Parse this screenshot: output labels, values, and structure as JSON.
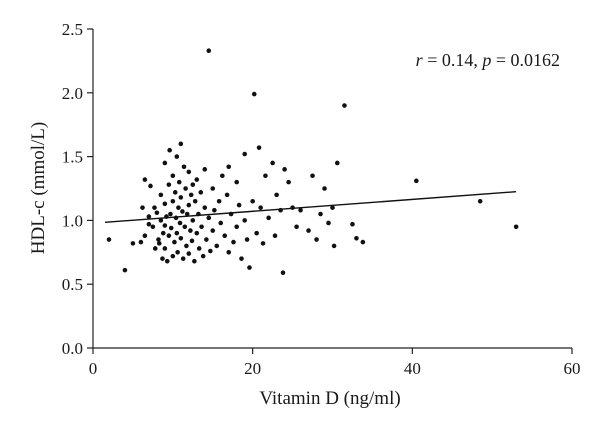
{
  "chart_data": {
    "type": "scatter",
    "title": "",
    "xlabel": "Vitamin D (ng/ml)",
    "ylabel": "HDL-c (mmol/L)",
    "xlim": [
      0,
      60
    ],
    "ylim": [
      0.0,
      2.5
    ],
    "x_ticks": [
      "0",
      "20",
      "40",
      "60"
    ],
    "y_ticks": [
      "0.0",
      "0.5",
      "1.0",
      "1.5",
      "2.0",
      "2.5"
    ],
    "grid": false,
    "annotation": {
      "r_symbol": "r",
      "r_value": " = 0.14, ",
      "p_symbol": "p",
      "p_value": " = 0.0162"
    },
    "trendline": {
      "x": [
        1.5,
        53
      ],
      "y": [
        0.985,
        1.225
      ]
    },
    "series": [
      {
        "points": [
          [
            2,
            0.85
          ],
          [
            4,
            0.61
          ],
          [
            5,
            0.82
          ],
          [
            6,
            0.83
          ],
          [
            6.5,
            1.32
          ],
          [
            6.2,
            1.1
          ],
          [
            6.5,
            0.88
          ],
          [
            7,
            1.03
          ],
          [
            7,
            0.97
          ],
          [
            7.2,
            1.27
          ],
          [
            7.5,
            0.95
          ],
          [
            7.7,
            1.1
          ],
          [
            7.8,
            0.78
          ],
          [
            8,
            1.06
          ],
          [
            8.2,
            0.85
          ],
          [
            8.3,
            0.82
          ],
          [
            8.5,
            1.2
          ],
          [
            8.5,
            1.0
          ],
          [
            8.7,
            0.7
          ],
          [
            8.8,
            0.9
          ],
          [
            9,
            1.45
          ],
          [
            9,
            1.13
          ],
          [
            9,
            0.96
          ],
          [
            9,
            0.78
          ],
          [
            9.2,
            1.03
          ],
          [
            9.3,
            0.68
          ],
          [
            9.5,
            1.28
          ],
          [
            9.5,
            0.88
          ],
          [
            9.6,
            1.55
          ],
          [
            9.7,
            1.05
          ],
          [
            9.8,
            0.94
          ],
          [
            10,
            1.35
          ],
          [
            10,
            1.15
          ],
          [
            10,
            0.72
          ],
          [
            10.2,
            0.83
          ],
          [
            10.3,
            1.22
          ],
          [
            10.4,
            1.02
          ],
          [
            10.5,
            1.5
          ],
          [
            10.5,
            0.9
          ],
          [
            10.6,
            0.75
          ],
          [
            10.7,
            1.1
          ],
          [
            10.8,
            1.3
          ],
          [
            10.9,
            0.98
          ],
          [
            11,
            1.6
          ],
          [
            11,
            0.86
          ],
          [
            11,
            1.18
          ],
          [
            11.2,
            1.07
          ],
          [
            11.3,
            0.7
          ],
          [
            11.4,
            1.42
          ],
          [
            11.5,
            0.95
          ],
          [
            11.6,
            1.25
          ],
          [
            11.7,
            0.8
          ],
          [
            11.8,
            1.05
          ],
          [
            12,
            1.38
          ],
          [
            12,
            0.74
          ],
          [
            12,
            1.12
          ],
          [
            12.2,
            0.92
          ],
          [
            12.3,
            1.2
          ],
          [
            12.4,
            0.84
          ],
          [
            12.5,
            1.0
          ],
          [
            12.5,
            1.28
          ],
          [
            12.7,
            0.68
          ],
          [
            12.8,
            1.15
          ],
          [
            13,
            0.9
          ],
          [
            13,
            1.32
          ],
          [
            13.2,
            1.05
          ],
          [
            13.3,
            0.78
          ],
          [
            13.5,
            1.22
          ],
          [
            13.6,
            0.95
          ],
          [
            13.8,
            0.72
          ],
          [
            14,
            1.1
          ],
          [
            14,
            1.4
          ],
          [
            14.2,
            0.85
          ],
          [
            14.5,
            2.33
          ],
          [
            14.5,
            1.02
          ],
          [
            14.7,
            0.76
          ],
          [
            15,
            1.25
          ],
          [
            15,
            0.92
          ],
          [
            15.2,
            1.08
          ],
          [
            15.5,
            0.8
          ],
          [
            15.8,
            1.15
          ],
          [
            16,
            0.98
          ],
          [
            16.2,
            1.35
          ],
          [
            16.5,
            0.88
          ],
          [
            16.8,
            1.2
          ],
          [
            17,
            0.75
          ],
          [
            17,
            1.42
          ],
          [
            17.3,
            1.05
          ],
          [
            17.6,
            0.83
          ],
          [
            18,
            1.3
          ],
          [
            18,
            0.95
          ],
          [
            18.3,
            1.12
          ],
          [
            18.6,
            0.7
          ],
          [
            19,
            1.52
          ],
          [
            19,
            1.0
          ],
          [
            19.3,
            0.85
          ],
          [
            19.6,
            0.63
          ],
          [
            20,
            1.15
          ],
          [
            20.2,
            1.99
          ],
          [
            20.5,
            0.9
          ],
          [
            20.8,
            1.57
          ],
          [
            21,
            1.1
          ],
          [
            21.3,
            0.82
          ],
          [
            21.6,
            1.35
          ],
          [
            22,
            1.02
          ],
          [
            22.5,
            1.45
          ],
          [
            22.8,
            0.88
          ],
          [
            23,
            1.2
          ],
          [
            23.5,
            1.08
          ],
          [
            23.8,
            0.59
          ],
          [
            24,
            1.4
          ],
          [
            24.5,
            1.3
          ],
          [
            25,
            1.1
          ],
          [
            25.5,
            0.95
          ],
          [
            26,
            1.08
          ],
          [
            27,
            0.92
          ],
          [
            27.5,
            1.35
          ],
          [
            28,
            0.85
          ],
          [
            28.5,
            1.05
          ],
          [
            29,
            1.25
          ],
          [
            29.5,
            0.98
          ],
          [
            30,
            1.1
          ],
          [
            30.2,
            0.8
          ],
          [
            30.6,
            1.45
          ],
          [
            31.5,
            1.9
          ],
          [
            32.5,
            0.97
          ],
          [
            33,
            0.86
          ],
          [
            33.8,
            0.83
          ],
          [
            40.5,
            1.31
          ],
          [
            48.5,
            1.15
          ],
          [
            53,
            0.95
          ]
        ]
      }
    ]
  }
}
